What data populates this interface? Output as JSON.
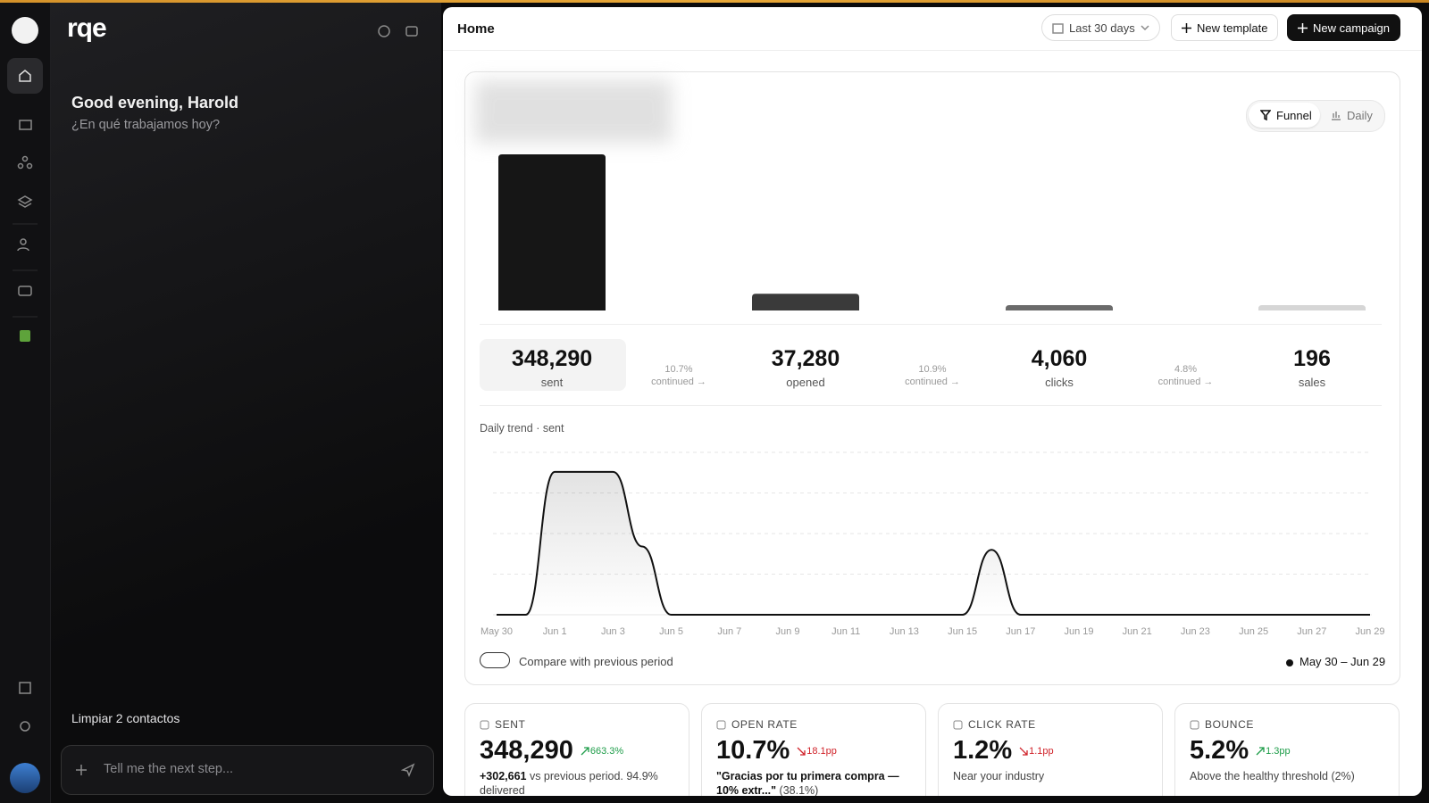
{
  "header": {
    "title": "Home",
    "date_range": "Last 30 days",
    "new_template": "New template",
    "new_campaign": "New campaign"
  },
  "assistant": {
    "brand": "rqe",
    "greeting": "Good evening, Harold",
    "prompt": "¿En qué trabajamos hoy?",
    "suggestion": "Limpiar 2 contactos",
    "input_placeholder": "Tell me the next step..."
  },
  "view_toggle": {
    "funnel": "Funnel",
    "daily": "Daily"
  },
  "chart_data": [
    {
      "type": "bar",
      "categories": [
        "sent",
        "opened",
        "clicks",
        "sales"
      ],
      "values": [
        348290,
        37280,
        4060,
        196
      ],
      "value_labels": [
        "348,290",
        "37,280",
        "4,060",
        "196"
      ],
      "colors": [
        "#161616",
        "#3a3a3a",
        "#6b6b6b",
        "#d6d6d6"
      ]
    },
    {
      "type": "line",
      "title": "Daily trend · sent",
      "categories": [
        "May 30",
        null,
        "Jun 1",
        null,
        "Jun 3",
        null,
        "Jun 5",
        null,
        "Jun 7",
        null,
        "Jun 9",
        null,
        "Jun 11",
        null,
        "Jun 13",
        null,
        "Jun 15",
        null,
        "Jun 17",
        null,
        "Jun 19",
        null,
        "Jun 21",
        null,
        "Jun 23",
        null,
        "Jun 25",
        null,
        "Jun 27",
        null,
        "Jun 29"
      ],
      "values": [
        0,
        0,
        88000,
        88000,
        88000,
        42000,
        0,
        0,
        0,
        0,
        0,
        0,
        0,
        0,
        0,
        0,
        0,
        40000,
        0,
        0,
        0,
        0,
        0,
        0,
        0,
        0,
        0,
        0,
        0,
        0,
        0
      ],
      "color": "#111111",
      "ylim": [
        0,
        100000
      ],
      "grid": true
    }
  ],
  "funnel_rates": {
    "rates": [
      "10.7%",
      "10.9%",
      "4.8%"
    ],
    "note": "continued →"
  },
  "compare": {
    "label": "Compare with previous period",
    "period": "May 30 – Jun 29"
  },
  "kpis": [
    {
      "label": "SENT",
      "value": "348,290",
      "change": "663.3%",
      "trend": "up",
      "detail_strong": "+302,661",
      "detail": " vs previous period. 94.9% delivered"
    },
    {
      "label": "OPEN RATE",
      "value": "10.7%",
      "change": "18.1pp",
      "trend": "down",
      "detail_strong": "\"Gracias por tu primera compra — 10% extr...\"",
      "detail": " (38.1%)"
    },
    {
      "label": "CLICK RATE",
      "value": "1.2%",
      "change": "1.1pp",
      "trend": "down",
      "detail": "Near your industry"
    },
    {
      "label": "BOUNCE",
      "value": "5.2%",
      "change": "1.3pp",
      "trend": "up",
      "detail": "Above the healthy threshold (2%)"
    }
  ]
}
